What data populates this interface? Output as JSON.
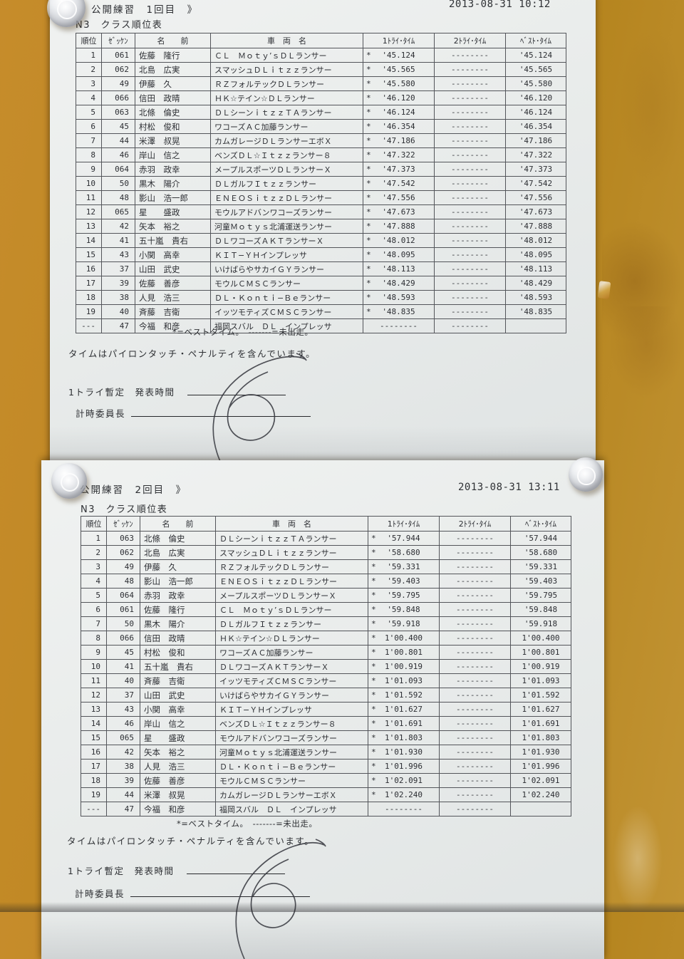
{
  "sheet1": {
    "title": "公開練習　1回目　》",
    "timestamp": "2013-08-31 10:12",
    "subtitle": "N3　クラス順位表",
    "columns": [
      "順位",
      "ｾﾞｯｹﾝ",
      "名　　前",
      "車　両　名",
      "1ﾄﾗｲ･ﾀｲﾑ",
      "2ﾄﾗｲ･ﾀｲﾑ",
      "ﾍﾞｽﾄ･ﾀｲﾑ"
    ],
    "rows": [
      [
        "1",
        "061",
        "佐藤　隆行",
        "ＣＬ　Ｍｏｔｙ’ｓＤＬランサー",
        "*",
        "'45.124",
        "--------",
        "'45.124"
      ],
      [
        "2",
        "062",
        "北島　広実",
        "スマッシュＤＬｉｔｚｚランサー",
        "*",
        "'45.565",
        "--------",
        "'45.565"
      ],
      [
        "3",
        "49",
        "伊藤　久",
        "ＲＺフォルテックＤＬランサー",
        "*",
        "'45.580",
        "--------",
        "'45.580"
      ],
      [
        "4",
        "066",
        "信田　政晴",
        "ＨＫ☆テイン☆ＤＬランサー",
        "*",
        "'46.120",
        "--------",
        "'46.120"
      ],
      [
        "5",
        "063",
        "北條　倫史",
        "ＤＬシーンｉｔｚｚＴＡランサー",
        "*",
        "'46.124",
        "--------",
        "'46.124"
      ],
      [
        "6",
        "45",
        "村松　俊和",
        "ワコーズＡＣ加藤ランサー",
        "*",
        "'46.354",
        "--------",
        "'46.354"
      ],
      [
        "7",
        "44",
        "米澤　叔晃",
        "カムガレージＤＬランサーエボＸ",
        "*",
        "'47.186",
        "--------",
        "'47.186"
      ],
      [
        "8",
        "46",
        "岸山　信之",
        "ベンズＤＬ☆Ｉｔｚｚランサー８",
        "*",
        "'47.322",
        "--------",
        "'47.322"
      ],
      [
        "9",
        "064",
        "赤羽　政幸",
        "メープルスポーツＤＬランサーＸ",
        "*",
        "'47.373",
        "--------",
        "'47.373"
      ],
      [
        "10",
        "50",
        "黒木　陽介",
        "ＤＬガルフＩｔｚｚランサー",
        "*",
        "'47.542",
        "--------",
        "'47.542"
      ],
      [
        "11",
        "48",
        "影山　浩一郎",
        "ＥＮＥＯＳｉｔｚｚＤＬランサー",
        "*",
        "'47.556",
        "--------",
        "'47.556"
      ],
      [
        "12",
        "065",
        "星　　盛政",
        "モウルアドバンワコーズランサー",
        "*",
        "'47.673",
        "--------",
        "'47.673"
      ],
      [
        "13",
        "42",
        "矢本　裕之",
        "河童Ｍｏｔｙｓ北浦運送ランサー",
        "*",
        "'47.888",
        "--------",
        "'47.888"
      ],
      [
        "14",
        "41",
        "五十嵐　貴右",
        "ＤＬワコーズＡＫＴランサーＸ",
        "*",
        "'48.012",
        "--------",
        "'48.012"
      ],
      [
        "15",
        "43",
        "小関　高幸",
        "ＫＩＴ−ＹＨインプレッサ",
        "*",
        "'48.095",
        "--------",
        "'48.095"
      ],
      [
        "16",
        "37",
        "山田　武史",
        "いけばらやサカイＧＹランサー",
        "*",
        "'48.113",
        "--------",
        "'48.113"
      ],
      [
        "17",
        "39",
        "佐藤　善彦",
        "モウルＣＭＳＣランサー",
        "*",
        "'48.429",
        "--------",
        "'48.429"
      ],
      [
        "18",
        "38",
        "人見　浩三",
        "ＤＬ・Ｋｏｎｔｉ−Ｂｅランサー",
        "*",
        "'48.593",
        "--------",
        "'48.593"
      ],
      [
        "19",
        "40",
        "斉藤　吉衛",
        "イッツモティズＣＭＳＣランサー",
        "*",
        "'48.835",
        "--------",
        "'48.835"
      ],
      [
        "---",
        "47",
        "今福　和彦",
        "福岡スバル　ＤＬ　インプレッサ",
        "",
        "--------",
        "--------",
        ""
      ]
    ],
    "legend": "*=ベストタイム。　-------=未出走。",
    "note": "タイムはパイロンタッチ・ペナルティを含んでいます。",
    "sig_time_label": "1トライ暫定　発表時間",
    "sig_chief_label": "計時委員長"
  },
  "sheet2": {
    "title": "公開練習　2回目　》",
    "timestamp": "2013-08-31 13:11",
    "subtitle": "N3　クラス順位表",
    "columns": [
      "順位",
      "ｾﾞｯｹﾝ",
      "名　　前",
      "車　両　名",
      "1ﾄﾗｲ･ﾀｲﾑ",
      "2ﾄﾗｲ･ﾀｲﾑ",
      "ﾍﾞｽﾄ･ﾀｲﾑ"
    ],
    "rows": [
      [
        "1",
        "063",
        "北條　倫史",
        "ＤＬシーンｉｔｚｚＴＡランサー",
        "*",
        "'57.944",
        "--------",
        "'57.944"
      ],
      [
        "2",
        "062",
        "北島　広実",
        "スマッシュＤＬｉｔｚｚランサー",
        "*",
        "'58.680",
        "--------",
        "'58.680"
      ],
      [
        "3",
        "49",
        "伊藤　久",
        "ＲＺフォルテックＤＬランサー",
        "*",
        "'59.331",
        "--------",
        "'59.331"
      ],
      [
        "4",
        "48",
        "影山　浩一郎",
        "ＥＮＥＯＳｉｔｚｚＤＬランサー",
        "*",
        "'59.403",
        "--------",
        "'59.403"
      ],
      [
        "5",
        "064",
        "赤羽　政幸",
        "メープルスポーツＤＬランサーＸ",
        "*",
        "'59.795",
        "--------",
        "'59.795"
      ],
      [
        "6",
        "061",
        "佐藤　隆行",
        "ＣＬ　Ｍｏｔｙ’ｓＤＬランサー",
        "*",
        "'59.848",
        "--------",
        "'59.848"
      ],
      [
        "7",
        "50",
        "黒木　陽介",
        "ＤＬガルフＩｔｚｚランサー",
        "*",
        "'59.918",
        "--------",
        "'59.918"
      ],
      [
        "8",
        "066",
        "信田　政晴",
        "ＨＫ☆テイン☆ＤＬランサー",
        "*",
        "1'00.400",
        "--------",
        "1'00.400"
      ],
      [
        "9",
        "45",
        "村松　俊和",
        "ワコーズＡＣ加藤ランサー",
        "*",
        "1'00.801",
        "--------",
        "1'00.801"
      ],
      [
        "10",
        "41",
        "五十嵐　貴右",
        "ＤＬワコーズＡＫＴランサーＸ",
        "*",
        "1'00.919",
        "--------",
        "1'00.919"
      ],
      [
        "11",
        "40",
        "斉藤　吉衛",
        "イッツモティズＣＭＳＣランサー",
        "*",
        "1'01.093",
        "--------",
        "1'01.093"
      ],
      [
        "12",
        "37",
        "山田　武史",
        "いけばらやサカイＧＹランサー",
        "*",
        "1'01.592",
        "--------",
        "1'01.592"
      ],
      [
        "13",
        "43",
        "小関　高幸",
        "ＫＩＴ−ＹＨインプレッサ",
        "*",
        "1'01.627",
        "--------",
        "1'01.627"
      ],
      [
        "14",
        "46",
        "岸山　信之",
        "ベンズＤＬ☆Ｉｔｚｚランサー８",
        "*",
        "1'01.691",
        "--------",
        "1'01.691"
      ],
      [
        "15",
        "065",
        "星　　盛政",
        "モウルアドバンワコーズランサー",
        "*",
        "1'01.803",
        "--------",
        "1'01.803"
      ],
      [
        "16",
        "42",
        "矢本　裕之",
        "河童Ｍｏｔｙｓ北浦運送ランサー",
        "*",
        "1'01.930",
        "--------",
        "1'01.930"
      ],
      [
        "17",
        "38",
        "人見　浩三",
        "ＤＬ・Ｋｏｎｔｉ−Ｂｅランサー",
        "*",
        "1'01.996",
        "--------",
        "1'01.996"
      ],
      [
        "18",
        "39",
        "佐藤　善彦",
        "モウルＣＭＳＣランサー",
        "*",
        "1'02.091",
        "--------",
        "1'02.091"
      ],
      [
        "19",
        "44",
        "米澤　叔晃",
        "カムガレージＤＬランサーエボＸ",
        "*",
        "1'02.240",
        "--------",
        "1'02.240"
      ],
      [
        "---",
        "47",
        "今福　和彦",
        "福岡スバル　ＤＬ　インプレッサ",
        "",
        "--------",
        "--------",
        ""
      ]
    ],
    "legend": "*=ベストタイム。　-------=未出走。",
    "note": "タイムはパイロンタッチ・ペナルティを含んでいます。",
    "sig_time_label": "1トライ暫定　発表時間",
    "sig_chief_label": "計時委員長"
  }
}
